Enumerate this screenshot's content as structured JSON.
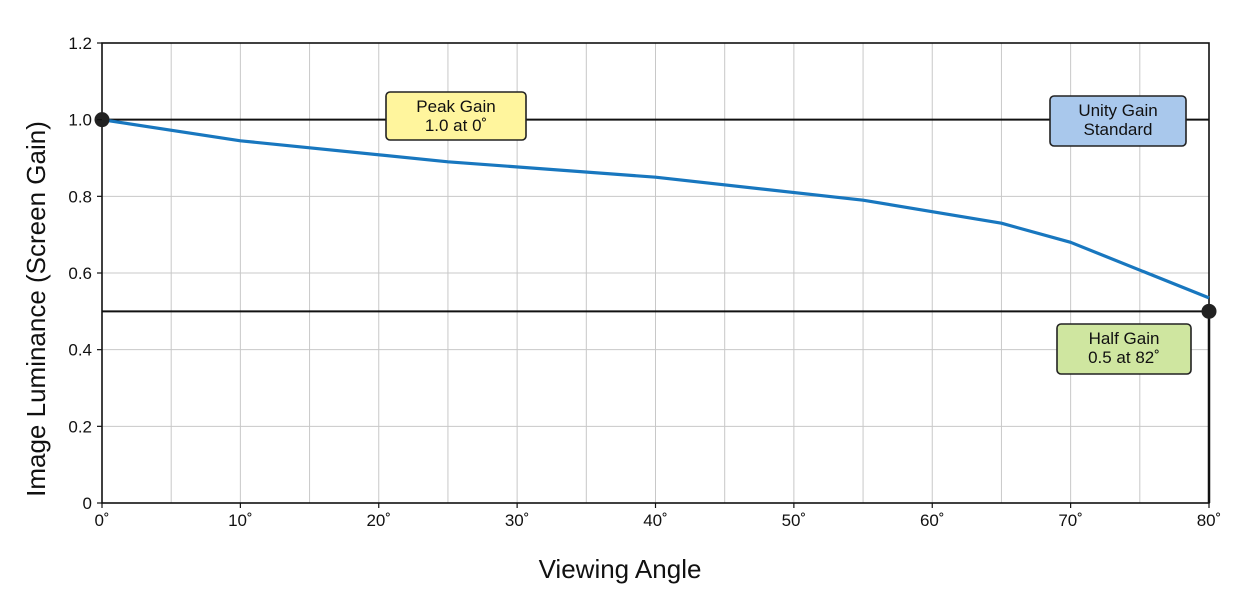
{
  "chart_data": {
    "type": "line",
    "xlabel": "Viewing Angle",
    "ylabel": "Image Luminance (Screen Gain)",
    "xlim": [
      0,
      80
    ],
    "ylim": [
      0,
      1.2
    ],
    "x_ticks": [
      0,
      10,
      20,
      30,
      40,
      50,
      60,
      70,
      80
    ],
    "x_tick_labels": [
      "0˚",
      "10˚",
      "20˚",
      "30˚",
      "40˚",
      "50˚",
      "60˚",
      "70˚",
      "80˚"
    ],
    "y_ticks": [
      0,
      0.2,
      0.4,
      0.6,
      0.8,
      1.0,
      1.2
    ],
    "y_tick_labels": [
      "0",
      "0.2",
      "0.4",
      "0.6",
      "0.8",
      "1.0",
      "1.2"
    ],
    "grid": true,
    "series": [
      {
        "color": "#1877bf",
        "x": [
          0,
          10,
          25,
          40,
          55,
          65,
          70,
          80
        ],
        "y": [
          1.0,
          0.945,
          0.89,
          0.85,
          0.79,
          0.73,
          0.68,
          0.535
        ]
      }
    ],
    "reference_lines": [
      {
        "y": 1.0,
        "color": "#111111"
      },
      {
        "y": 0.5,
        "color": "#111111"
      }
    ],
    "markers": [
      {
        "x": 0,
        "y": 1.0
      },
      {
        "x": 80,
        "y": 0.5
      }
    ],
    "annotations": [
      {
        "id": "peak",
        "lines": [
          "Peak Gain",
          "1.0 at 0˚"
        ],
        "fill": "#fff59d"
      },
      {
        "id": "unity",
        "lines": [
          "Unity Gain",
          "Standard"
        ],
        "fill": "#a9c8ec"
      },
      {
        "id": "half",
        "lines": [
          "Half Gain",
          "0.5 at 82˚"
        ],
        "fill": "#cfe6a0"
      }
    ]
  }
}
